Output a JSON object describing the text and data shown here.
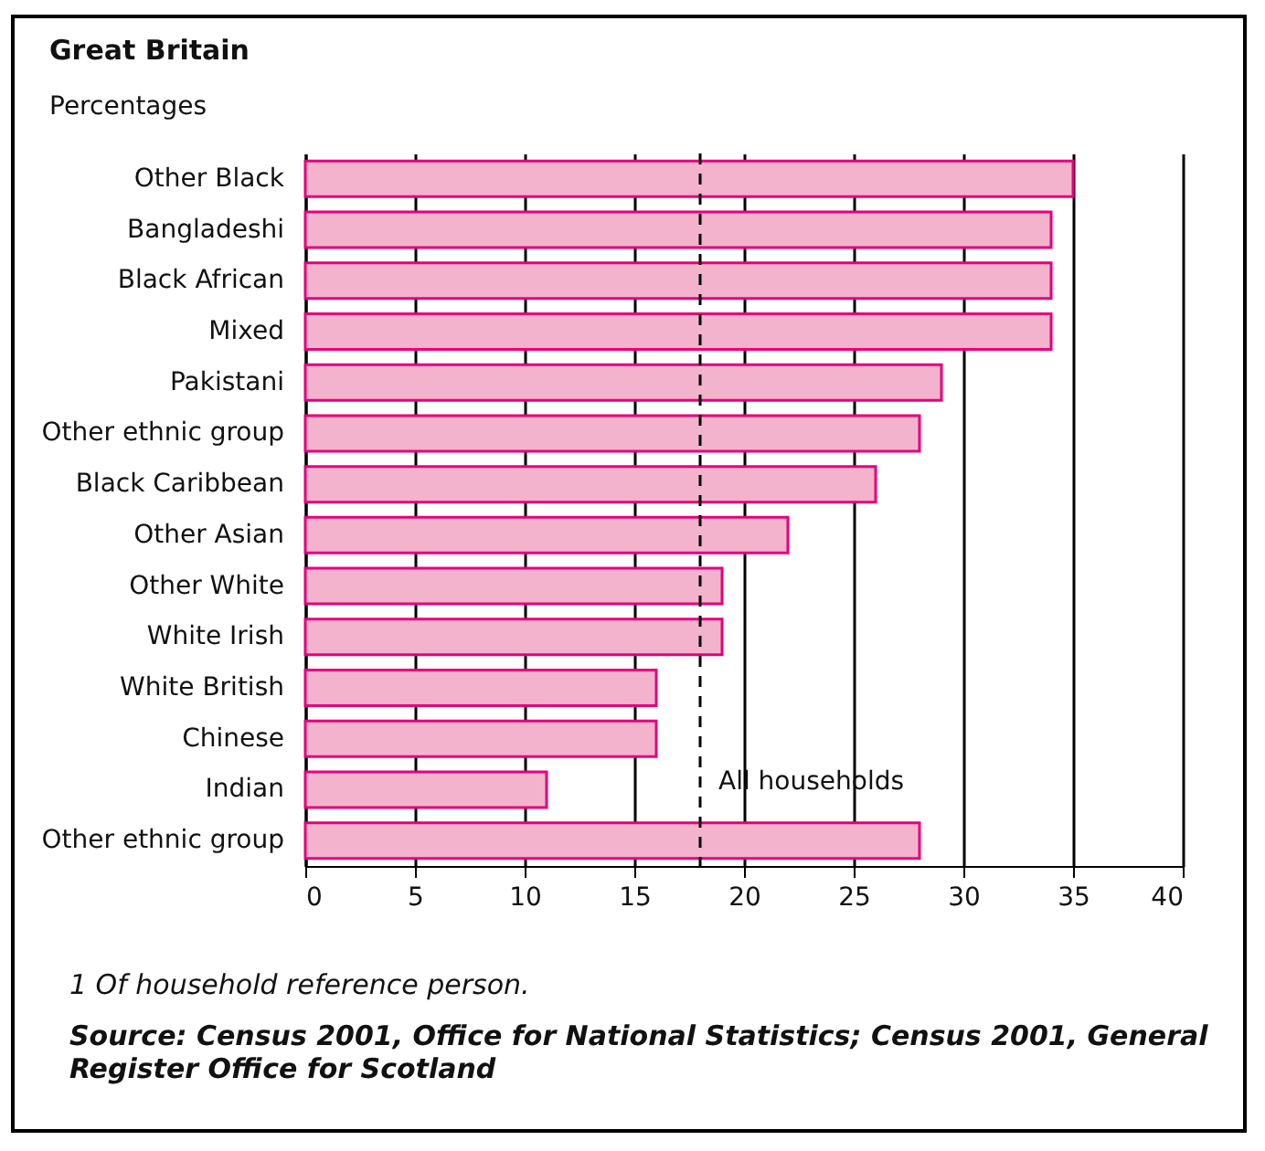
{
  "chart_data": {
    "type": "bar",
    "orientation": "horizontal",
    "title": "Great Britain",
    "subtitle": "Percentages",
    "categories": [
      "Other Black",
      "Bangladeshi",
      "Black African",
      "Mixed",
      "Pakistani",
      "Other ethnic group",
      "Black Caribbean",
      "Other  Asian",
      "Other White",
      "White Irish",
      "White British",
      "Chinese",
      "Indian",
      "Other ethnic group"
    ],
    "values": [
      35,
      34,
      34,
      34,
      29,
      28,
      26,
      22,
      19,
      19,
      16,
      16,
      11,
      28
    ],
    "color": "#f3b3cd",
    "xlim": [
      0,
      40
    ],
    "xticks": [
      0,
      5,
      10,
      15,
      20,
      25,
      30,
      35,
      40
    ],
    "grid": "x",
    "ref_lines": [
      {
        "axis": "x",
        "value": 18,
        "label": "All households",
        "line_style": "dashed",
        "color": "#000000"
      }
    ],
    "annotations": [
      "1   Of household reference person.",
      "Source: Census 2001, Office for National Statistics; Census 2001, General Register Office for Scotland"
    ]
  }
}
